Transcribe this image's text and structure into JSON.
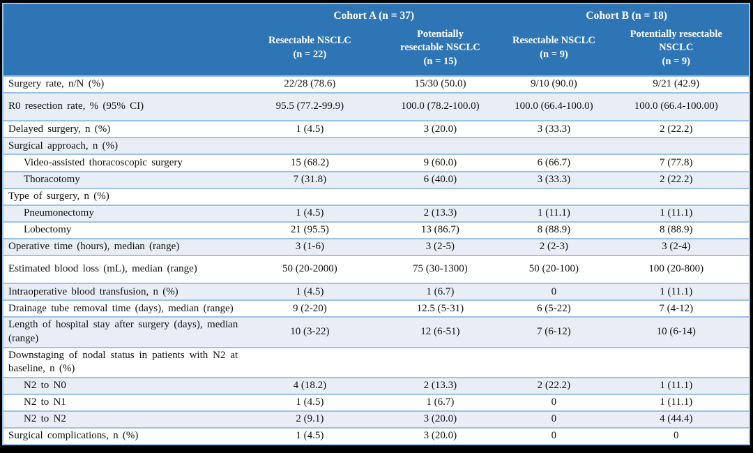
{
  "table": {
    "header": {
      "cohorts": [
        {
          "label": "Cohort A (n = 37)"
        },
        {
          "label": "Cohort B (n = 18)"
        }
      ],
      "subcolumns": [
        "Resectable NSCLC\n(n = 22)",
        "Potentially\nresectable NSCLC\n(n = 15)",
        "Resectable NSCLC\n(n = 9)",
        "Potentially resectable\nNSCLC\n(n = 9)"
      ]
    },
    "rows": [
      {
        "label": "Surgery rate, n/N (%)",
        "values": [
          "22/28 (78.6)",
          "15/30 (50.0)",
          "9/10 (90.0)",
          "9/21 (42.9)"
        ]
      },
      {
        "label": "R0 resection rate, % (95% CI)",
        "values": [
          "95.5 (77.2-99.9)",
          "100.0 (78.2-100.0)",
          "100.0 (66.4-100.0)",
          "100.0 (66.4-100.00)"
        ]
      },
      {
        "label": "Delayed surgery, n (%)",
        "values": [
          "1 (4.5)",
          "3 (20.0)",
          "3 (33.3)",
          "2 (22.2)"
        ]
      },
      {
        "label": "Surgical approach, n (%)",
        "values": [
          "",
          "",
          "",
          ""
        ]
      },
      {
        "label": "Video-assisted thoracoscopic surgery",
        "values": [
          "15 (68.2)",
          "9 (60.0)",
          "6 (66.7)",
          "7 (77.8)"
        ]
      },
      {
        "label": "Thoracotomy",
        "values": [
          "7 (31.8)",
          "6 (40.0)",
          "3 (33.3)",
          "2 (22.2)"
        ]
      },
      {
        "label": "Type of surgery, n (%)",
        "values": [
          "",
          "",
          "",
          ""
        ]
      },
      {
        "label": "Pneumonectomy",
        "values": [
          "1 (4.5)",
          "2 (13.3)",
          "1 (11.1)",
          "1 (11.1)"
        ]
      },
      {
        "label": "Lobectomy",
        "values": [
          "21 (95.5)",
          "13 (86.7)",
          "8 (88.9)",
          "8 (88.9)"
        ]
      },
      {
        "label": "Operative time (hours), median (range)",
        "values": [
          "3 (1-6)",
          "3 (2-5)",
          "2 (2-3)",
          "3 (2-4)"
        ]
      },
      {
        "label": "Estimated blood loss (mL), median (range)",
        "values": [
          "50 (20-2000)",
          "75 (30-1300)",
          "50 (20-100)",
          "100 (20-800)"
        ]
      },
      {
        "label": "Intraoperative blood transfusion, n (%)",
        "values": [
          "1 (4.5)",
          "1 (6.7)",
          "0",
          "1 (11.1)"
        ]
      },
      {
        "label": "Drainage tube removal time (days), median (range)",
        "values": [
          "9 (2-20)",
          "12.5 (5-31)",
          "6 (5-22)",
          "7 (4-12)"
        ]
      },
      {
        "label": "Length of hospital stay after surgery (days), median (range)",
        "values": [
          "10 (3-22)",
          "12 (6-51)",
          "7 (6-12)",
          "10 (6-14)"
        ]
      },
      {
        "label": "Downstaging of nodal status in patients with N2 at baseline, n (%)",
        "values": [
          "",
          "",
          "",
          ""
        ]
      },
      {
        "label": "N2 to N0",
        "values": [
          "4 (18.2)",
          "2 (13.3)",
          "2 (22.2)",
          "1 (11.1)"
        ]
      },
      {
        "label": "N2 to N1",
        "values": [
          "1 (4.5)",
          "1 (6.7)",
          "0",
          "1 (11.1)"
        ]
      },
      {
        "label": "N2 to N2",
        "values": [
          "2 (9.1)",
          "3 (20.0)",
          "0",
          "4 (44.4)"
        ]
      },
      {
        "label": "Surgical complications, n (%)",
        "values": [
          "1 (4.5)",
          "3 (20.0)",
          "0",
          "0"
        ]
      }
    ]
  },
  "colors": {
    "header_bg": "#2E75B6",
    "alt_row_bg": "#E9EEF6",
    "border": "#9CC2E5",
    "frame": "#000000",
    "header_text": "#FFFFFF"
  }
}
